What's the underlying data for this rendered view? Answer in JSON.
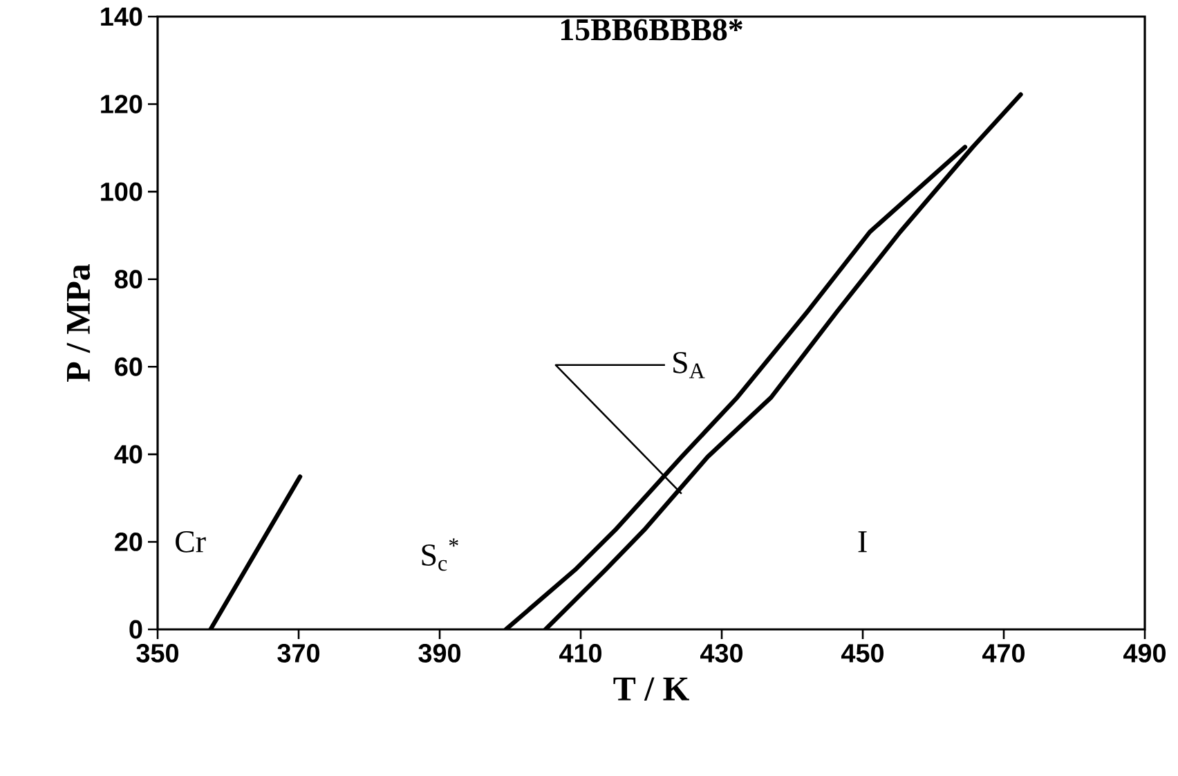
{
  "chart_data": {
    "type": "line",
    "title": "15BB6BBB8*",
    "xlabel": "T / K",
    "ylabel": "P / MPa",
    "xlim": [
      350,
      490
    ],
    "ylim": [
      0,
      140
    ],
    "xticks": [
      350,
      370,
      390,
      410,
      430,
      450,
      470,
      490
    ],
    "yticks": [
      0,
      20,
      40,
      60,
      80,
      100,
      120,
      140
    ],
    "series": [
      {
        "color": "#000000",
        "x": [
          357.5,
          370.2
        ],
        "values": [
          0,
          34.9
        ]
      },
      {
        "color": "#000000",
        "x": [
          399.4,
          409.2,
          414.9,
          424.3,
          432.2,
          442.2,
          451.0,
          464.5
        ],
        "values": [
          0,
          13.6,
          22.7,
          39.4,
          53.0,
          72.7,
          90.8,
          110.2
        ]
      },
      {
        "color": "#000000",
        "x": [
          405.0,
          413.5,
          419.0,
          428.0,
          437.0,
          446.4,
          455.3,
          465.6,
          472.4
        ],
        "values": [
          0,
          13.6,
          22.7,
          39.4,
          53.0,
          72.7,
          90.8,
          110.2,
          122.2
        ]
      }
    ],
    "annotations": [
      "Cr",
      "S$_{c}$$^{*}$",
      "I",
      {
        "text": "S$_{A}$",
        "x": 424.3,
        "y": 31
      }
    ],
    "grid": false
  }
}
